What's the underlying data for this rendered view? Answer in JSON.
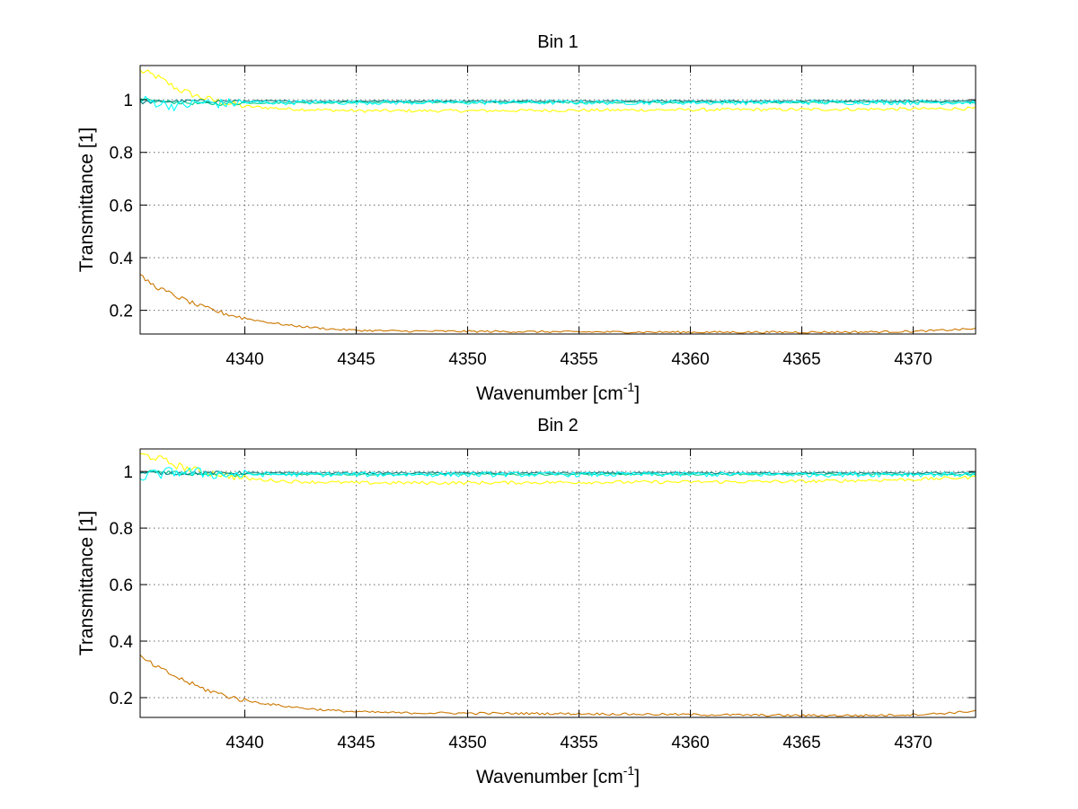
{
  "chart_data": [
    {
      "type": "line",
      "title": "Bin 1",
      "xlabel": "Wavenumber [cm",
      "xlabel_sup": "-1",
      "xlabel_end": "]",
      "ylabel": "Transmittance [1]",
      "xlim": [
        4335.3,
        4372.8
      ],
      "ylim": [
        0.11,
        1.13
      ],
      "xticks": [
        4340,
        4345,
        4350,
        4355,
        4360,
        4365,
        4370
      ],
      "yticks": [
        0.2,
        0.4,
        0.6,
        0.8,
        1
      ],
      "ytick_labels": [
        "0.2",
        "0.4",
        "0.6",
        "0.8",
        "1"
      ],
      "grid": true,
      "series": [
        {
          "name": "series-yellow",
          "color": "#ffff00",
          "jitter": 0.006,
          "x": [
            4335.3,
            4336.0,
            4337.0,
            4338.0,
            4339.0,
            4340.0,
            4342.0,
            4345.0,
            4350.0,
            4355.0,
            4360.0,
            4365.0,
            4370.0,
            4372.8
          ],
          "y": [
            1.11,
            1.09,
            1.04,
            1.01,
            0.99,
            0.975,
            0.965,
            0.958,
            0.958,
            0.96,
            0.962,
            0.963,
            0.965,
            0.967
          ]
        },
        {
          "name": "series-green",
          "color": "#00cc88",
          "jitter": 0.003,
          "x": [
            4335.3,
            4336.0,
            4337.0,
            4338.0,
            4339.0,
            4340.0,
            4345.0,
            4350.0,
            4355.0,
            4360.0,
            4365.0,
            4370.0,
            4372.8
          ],
          "y": [
            1.0,
            0.995,
            0.99,
            0.985,
            0.985,
            0.988,
            0.99,
            0.99,
            0.99,
            0.99,
            0.99,
            0.99,
            0.99
          ]
        },
        {
          "name": "series-teal",
          "color": "#008080",
          "jitter": 0.003,
          "x": [
            4335.3,
            4337.0,
            4340.0,
            4345.0,
            4350.0,
            4355.0,
            4360.0,
            4365.0,
            4370.0,
            4372.8
          ],
          "y": [
            0.99,
            0.995,
            0.995,
            0.995,
            0.995,
            0.995,
            0.995,
            0.995,
            0.995,
            0.995
          ]
        },
        {
          "name": "series-cyan",
          "color": "#00ffff",
          "jitter": 0.009,
          "x": [
            4335.3,
            4336.0,
            4337.0,
            4338.0,
            4339.0,
            4340.0,
            4345.0,
            4350.0,
            4355.0,
            4360.0,
            4365.0,
            4370.0,
            4372.8
          ],
          "y": [
            1.0,
            0.99,
            0.975,
            0.99,
            0.985,
            0.99,
            0.99,
            0.99,
            0.99,
            0.99,
            0.99,
            0.99,
            0.99
          ]
        },
        {
          "name": "series-orange",
          "color": "#cc7700",
          "jitter": 0.004,
          "x": [
            4335.3,
            4336.0,
            4337.0,
            4338.0,
            4339.0,
            4340.0,
            4341.0,
            4342.0,
            4343.0,
            4344.0,
            4345.0,
            4347.0,
            4350.0,
            4355.0,
            4360.0,
            4365.0,
            4368.0,
            4370.0,
            4371.0,
            4372.0,
            4372.8
          ],
          "y": [
            0.33,
            0.29,
            0.25,
            0.215,
            0.19,
            0.17,
            0.155,
            0.143,
            0.135,
            0.128,
            0.124,
            0.121,
            0.12,
            0.118,
            0.117,
            0.117,
            0.118,
            0.12,
            0.123,
            0.127,
            0.13
          ]
        }
      ]
    },
    {
      "type": "line",
      "title": "Bin 2",
      "xlabel": "Wavenumber [cm",
      "xlabel_sup": "-1",
      "xlabel_end": "]",
      "ylabel": "Transmittance [1]",
      "xlim": [
        4335.3,
        4372.8
      ],
      "ylim": [
        0.13,
        1.08
      ],
      "xticks": [
        4340,
        4345,
        4350,
        4355,
        4360,
        4365,
        4370
      ],
      "yticks": [
        0.2,
        0.4,
        0.6,
        0.8,
        1
      ],
      "ytick_labels": [
        "0.2",
        "0.4",
        "0.6",
        "0.8",
        "1"
      ],
      "grid": true,
      "series": [
        {
          "name": "series-yellow",
          "color": "#ffff00",
          "jitter": 0.006,
          "x": [
            4335.3,
            4336.0,
            4337.0,
            4338.0,
            4339.0,
            4340.0,
            4342.0,
            4345.0,
            4350.0,
            4355.0,
            4360.0,
            4365.0,
            4370.0,
            4372.8
          ],
          "y": [
            1.06,
            1.05,
            1.02,
            1.0,
            0.99,
            0.975,
            0.965,
            0.96,
            0.96,
            0.962,
            0.963,
            0.965,
            0.972,
            0.98
          ]
        },
        {
          "name": "series-green",
          "color": "#00cc88",
          "jitter": 0.003,
          "x": [
            4335.3,
            4336.0,
            4337.0,
            4338.0,
            4339.0,
            4340.0,
            4345.0,
            4350.0,
            4355.0,
            4360.0,
            4365.0,
            4370.0,
            4372.8
          ],
          "y": [
            1.0,
            1.0,
            0.995,
            0.99,
            0.99,
            0.99,
            0.99,
            0.99,
            0.99,
            0.99,
            0.99,
            0.99,
            0.99
          ]
        },
        {
          "name": "series-teal",
          "color": "#008080",
          "jitter": 0.003,
          "x": [
            4335.3,
            4337.0,
            4340.0,
            4345.0,
            4350.0,
            4355.0,
            4360.0,
            4365.0,
            4370.0,
            4372.8
          ],
          "y": [
            0.995,
            0.995,
            0.995,
            0.995,
            0.995,
            0.995,
            0.995,
            0.995,
            0.995,
            0.995
          ]
        },
        {
          "name": "series-cyan",
          "color": "#00ffff",
          "jitter": 0.009,
          "x": [
            4335.3,
            4336.0,
            4337.0,
            4338.0,
            4339.0,
            4340.0,
            4345.0,
            4350.0,
            4355.0,
            4360.0,
            4365.0,
            4370.0,
            4372.8
          ],
          "y": [
            0.98,
            0.99,
            1.0,
            0.995,
            0.99,
            0.99,
            0.99,
            0.99,
            0.99,
            0.99,
            0.99,
            0.99,
            0.99
          ]
        },
        {
          "name": "series-orange",
          "color": "#cc7700",
          "jitter": 0.004,
          "x": [
            4335.3,
            4336.0,
            4337.0,
            4338.0,
            4339.0,
            4340.0,
            4341.0,
            4342.0,
            4343.0,
            4344.0,
            4345.0,
            4347.0,
            4350.0,
            4355.0,
            4360.0,
            4363.0,
            4365.0,
            4368.0,
            4370.0,
            4371.0,
            4372.0,
            4372.8
          ],
          "y": [
            0.345,
            0.31,
            0.27,
            0.235,
            0.21,
            0.19,
            0.178,
            0.168,
            0.16,
            0.154,
            0.15,
            0.146,
            0.145,
            0.143,
            0.14,
            0.138,
            0.137,
            0.137,
            0.14,
            0.143,
            0.148,
            0.153
          ]
        }
      ]
    }
  ]
}
